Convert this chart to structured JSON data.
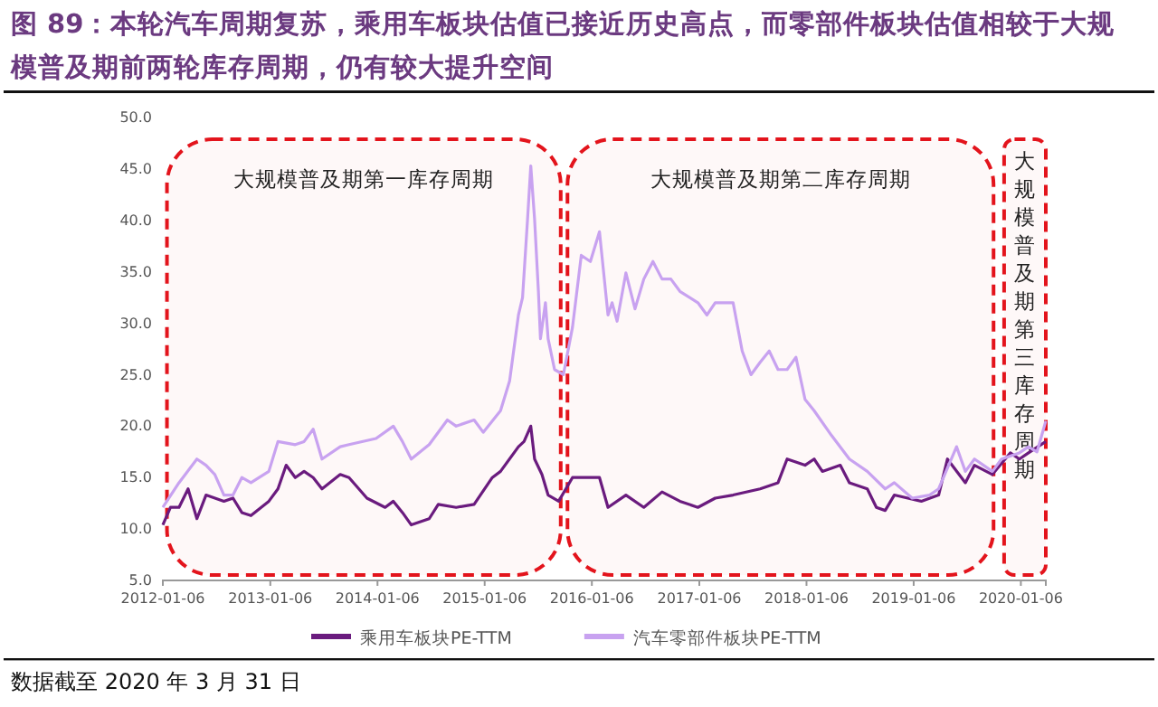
{
  "chart_data": {
    "type": "line",
    "title": "图 89：本轮汽车周期复苏，乘用车板块估值已接近历史高点，而零部件板块估值相较于大规模普及期前两轮库存周期，仍有较大提升空间",
    "xlim": [
      "2012-01-06",
      "2020-03-31"
    ],
    "xticks": [
      "2012-01-06",
      "2013-01-06",
      "2014-01-06",
      "2015-01-06",
      "2016-01-06",
      "2017-01-06",
      "2018-01-06",
      "2019-01-06",
      "2020-01-06"
    ],
    "ylim": [
      5,
      50
    ],
    "yticks": [
      {
        "value": 5,
        "label": "5.0"
      },
      {
        "value": 10,
        "label": "10.0"
      },
      {
        "value": 15,
        "label": "15.0"
      },
      {
        "value": 20,
        "label": "20.0"
      },
      {
        "value": 25,
        "label": "25.0"
      },
      {
        "value": 30,
        "label": "30.0"
      },
      {
        "value": 35,
        "label": "35.0"
      },
      {
        "value": 40,
        "label": "40.0"
      },
      {
        "value": 45,
        "label": "45.0"
      },
      {
        "value": 50,
        "label": "50.0"
      }
    ],
    "grid": false,
    "legend": "bottom",
    "series": [
      {
        "name": "乘用车板块PE-TTM",
        "color": "#6a1b7e",
        "x": [
          "2012-01-06",
          "2012-02",
          "2012-03",
          "2012-04",
          "2012-05",
          "2012-06",
          "2012-08",
          "2012-09",
          "2012-10",
          "2012-11",
          "2013-01",
          "2013-02",
          "2013-03",
          "2013-04",
          "2013-05",
          "2013-06",
          "2013-07",
          "2013-09",
          "2013-10",
          "2013-12",
          "2014-02",
          "2014-03",
          "2014-04",
          "2014-05",
          "2014-07",
          "2014-08",
          "2014-10",
          "2014-12",
          "2015-02",
          "2015-03",
          "2015-05-01",
          "2015-05-20",
          "2015-06-12",
          "2015-06-25",
          "2015-07-20",
          "2015-08-10",
          "2015-09-15",
          "2015-11",
          "2016-02",
          "2016-03",
          "2016-05",
          "2016-07",
          "2016-09",
          "2016-11",
          "2017-01",
          "2017-03",
          "2017-05",
          "2017-08",
          "2017-10",
          "2017-11",
          "2018-01",
          "2018-02",
          "2018-03",
          "2018-05",
          "2018-06",
          "2018-08",
          "2018-09",
          "2018-10",
          "2018-11",
          "2019-02",
          "2019-04",
          "2019-05",
          "2019-07",
          "2019-08",
          "2019-10",
          "2019-12",
          "2020-01",
          "2020-02",
          "2020-03-31"
        ],
        "values": [
          10.4,
          12.1,
          12.1,
          13.9,
          11,
          13.3,
          12.7,
          13,
          11.6,
          11.3,
          12.7,
          13.9,
          16.2,
          15,
          15.6,
          15,
          13.9,
          15.3,
          15,
          13,
          12.1,
          12.7,
          11.6,
          10.4,
          11,
          12.4,
          12.1,
          12.4,
          15,
          15.6,
          18,
          18.5,
          20,
          16.8,
          15.3,
          13.3,
          12.7,
          15,
          15,
          12.1,
          13.3,
          12.1,
          13.6,
          12.7,
          12.1,
          13,
          13.3,
          13.9,
          14.5,
          16.8,
          16.2,
          16.8,
          15.6,
          16.2,
          14.5,
          13.9,
          12.1,
          11.8,
          13.3,
          12.7,
          13.3,
          16.8,
          14.5,
          16.2,
          15.3,
          17.4,
          16.8,
          17.4,
          18.5
        ]
      },
      {
        "name": "汽车零部件板块PE-TTM",
        "color": "#c8a2f0",
        "x": [
          "2012-01-06",
          "2012-03",
          "2012-05",
          "2012-06",
          "2012-07",
          "2012-08",
          "2012-09",
          "2012-10",
          "2012-11",
          "2013-01",
          "2013-02",
          "2013-04",
          "2013-05",
          "2013-06",
          "2013-07",
          "2013-09",
          "2013-10",
          "2014-01",
          "2014-03",
          "2014-04",
          "2014-05",
          "2014-07",
          "2014-09",
          "2014-10",
          "2014-12",
          "2015-01",
          "2015-03",
          "2015-04",
          "2015-05-01",
          "2015-05-15",
          "2015-06-01",
          "2015-06-12",
          "2015-06-25",
          "2015-07-08",
          "2015-07-15",
          "2015-08-01",
          "2015-08-10",
          "2015-09",
          "2015-10",
          "2015-11",
          "2015-12",
          "2016-01",
          "2016-02",
          "2016-03-01",
          "2016-03-15",
          "2016-04",
          "2016-05",
          "2016-06",
          "2016-07",
          "2016-08",
          "2016-09",
          "2016-10",
          "2016-11",
          "2017-01",
          "2017-02",
          "2017-03",
          "2017-05",
          "2017-06",
          "2017-07",
          "2017-08",
          "2017-09",
          "2017-10",
          "2017-11",
          "2017-12",
          "2018-01",
          "2018-02",
          "2018-04",
          "2018-06",
          "2018-08",
          "2018-10",
          "2018-11",
          "2019-01",
          "2019-03",
          "2019-04",
          "2019-06",
          "2019-07",
          "2019-08",
          "2019-10",
          "2019-11",
          "2020-01",
          "2020-02",
          "2020-03-01",
          "2020-03-31"
        ],
        "values": [
          12.1,
          14.5,
          16.8,
          16.2,
          15.3,
          13.3,
          13.3,
          15,
          14.5,
          15.6,
          18.5,
          18.2,
          18.5,
          19.7,
          16.8,
          18,
          18.2,
          18.8,
          20,
          18.5,
          16.8,
          18.2,
          20.6,
          20,
          20.6,
          19.4,
          21.5,
          24.4,
          30.8,
          32.5,
          40.1,
          45.3,
          40.1,
          33.1,
          28.5,
          32,
          28.5,
          25.5,
          25,
          29.6,
          36.6,
          36,
          38.9,
          30.8,
          32,
          30.2,
          34.9,
          31.4,
          34.3,
          36,
          34.3,
          34.3,
          33.1,
          32,
          30.8,
          32,
          32,
          27.3,
          25,
          26.2,
          27.3,
          25.5,
          25.5,
          26.7,
          22.6,
          21.5,
          19.1,
          16.8,
          15.6,
          13.9,
          14.5,
          13,
          13.3,
          13.9,
          18,
          15.6,
          16.8,
          15.6,
          16.8,
          17.4,
          18,
          17.5,
          20.5
        ]
      }
    ],
    "bands": [
      {
        "axis": "x",
        "from": "2012-01-20",
        "to": "2015-09-22",
        "label": "大规模普及期第一库存周期",
        "color": "#e3141c"
      },
      {
        "axis": "x",
        "from": "2015-10-15",
        "to": "2019-10-05",
        "label": "大规模普及期第二库存周期",
        "color": "#e3141c"
      },
      {
        "axis": "x",
        "from": "2019-11-10",
        "to": "2020-03-31",
        "label": "大规模普及期第三库存周期",
        "color": "#e3141c"
      }
    ],
    "annotations": [
      "数据截至 2020 年 3 月 31 日"
    ]
  }
}
